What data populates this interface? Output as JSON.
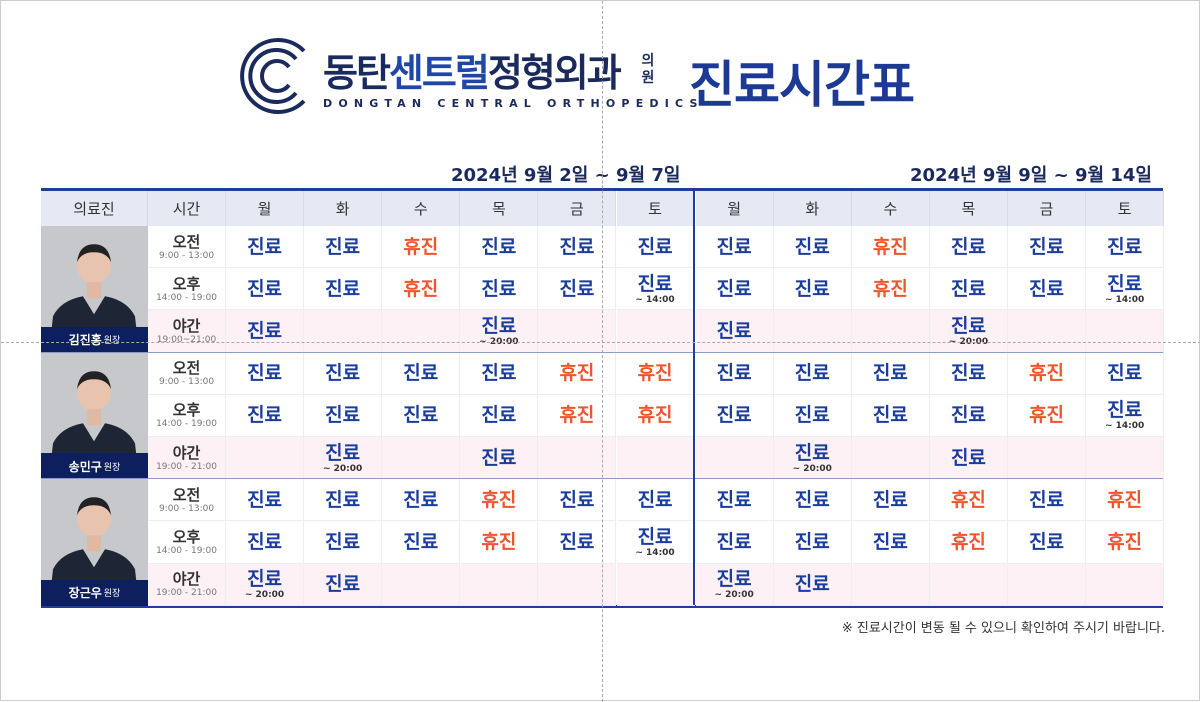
{
  "header": {
    "brand_ko_a": "동탄",
    "brand_ko_b": "센트럴",
    "brand_ko_c": "정형외과",
    "brand_suffix_1": "의",
    "brand_suffix_2": "원",
    "brand_en": "DONGTAN CENTRAL ORTHOPEDICS",
    "title": "진료시간표"
  },
  "weeks": [
    "2024년 9월 2일 ~ 9월 7일",
    "2024년 9월 9일 ~ 9월 14일"
  ],
  "columns": {
    "doctor": "의료진",
    "time": "시간",
    "days": [
      "월",
      "화",
      "수",
      "목",
      "금",
      "토"
    ]
  },
  "colors": {
    "open": "#1a3c9c",
    "closed": "#f0542d",
    "navy": "#0e1f5f"
  },
  "doctors": [
    {
      "name": "김진홍",
      "title": "원장",
      "slots": [
        {
          "label": "오전",
          "time": "9:00 - 13:00",
          "w1": [
            [
              "진료"
            ],
            [
              "진료"
            ],
            [
              "휴진"
            ],
            [
              "진료"
            ],
            [
              "진료"
            ],
            [
              "진료"
            ]
          ],
          "w2": [
            [
              "진료"
            ],
            [
              "진료"
            ],
            [
              "휴진"
            ],
            [
              "진료"
            ],
            [
              "진료"
            ],
            [
              "진료"
            ]
          ]
        },
        {
          "label": "오후",
          "time": "14:00 - 19:00",
          "w1": [
            [
              "진료"
            ],
            [
              "진료"
            ],
            [
              "휴진"
            ],
            [
              "진료"
            ],
            [
              "진료"
            ],
            [
              "진료",
              "~ 14:00"
            ]
          ],
          "w2": [
            [
              "진료"
            ],
            [
              "진료"
            ],
            [
              "휴진"
            ],
            [
              "진료"
            ],
            [
              "진료"
            ],
            [
              "진료",
              "~ 14:00"
            ]
          ]
        },
        {
          "label": "야간",
          "time": "19:00~21:00",
          "w1": [
            [
              "진료"
            ],
            [],
            [],
            [
              "진료",
              "~ 20:00"
            ],
            [],
            []
          ],
          "w2": [
            [
              "진료"
            ],
            [],
            [],
            [
              "진료",
              "~ 20:00"
            ],
            [],
            []
          ]
        }
      ]
    },
    {
      "name": "송민구",
      "title": "원장",
      "slots": [
        {
          "label": "오전",
          "time": "9:00 - 13:00",
          "w1": [
            [
              "진료"
            ],
            [
              "진료"
            ],
            [
              "진료"
            ],
            [
              "진료"
            ],
            [
              "휴진"
            ],
            [
              "휴진"
            ]
          ],
          "w2": [
            [
              "진료"
            ],
            [
              "진료"
            ],
            [
              "진료"
            ],
            [
              "진료"
            ],
            [
              "휴진"
            ],
            [
              "진료"
            ]
          ]
        },
        {
          "label": "오후",
          "time": "14:00 - 19:00",
          "w1": [
            [
              "진료"
            ],
            [
              "진료"
            ],
            [
              "진료"
            ],
            [
              "진료"
            ],
            [
              "휴진"
            ],
            [
              "휴진"
            ]
          ],
          "w2": [
            [
              "진료"
            ],
            [
              "진료"
            ],
            [
              "진료"
            ],
            [
              "진료"
            ],
            [
              "휴진"
            ],
            [
              "진료",
              "~ 14:00"
            ]
          ]
        },
        {
          "label": "야간",
          "time": "19:00 - 21:00",
          "w1": [
            [],
            [
              "진료",
              "~ 20:00"
            ],
            [],
            [
              "진료"
            ],
            [],
            []
          ],
          "w2": [
            [],
            [
              "진료",
              "~ 20:00"
            ],
            [],
            [
              "진료"
            ],
            [],
            []
          ]
        }
      ]
    },
    {
      "name": "장근우",
      "title": "원장",
      "slots": [
        {
          "label": "오전",
          "time": "9:00 - 13:00",
          "w1": [
            [
              "진료"
            ],
            [
              "진료"
            ],
            [
              "진료"
            ],
            [
              "휴진"
            ],
            [
              "진료"
            ],
            [
              "진료"
            ]
          ],
          "w2": [
            [
              "진료"
            ],
            [
              "진료"
            ],
            [
              "진료"
            ],
            [
              "휴진"
            ],
            [
              "진료"
            ],
            [
              "휴진"
            ]
          ]
        },
        {
          "label": "오후",
          "time": "14:00 - 19:00",
          "w1": [
            [
              "진료"
            ],
            [
              "진료"
            ],
            [
              "진료"
            ],
            [
              "휴진"
            ],
            [
              "진료"
            ],
            [
              "진료",
              "~ 14:00"
            ]
          ],
          "w2": [
            [
              "진료"
            ],
            [
              "진료"
            ],
            [
              "진료"
            ],
            [
              "휴진"
            ],
            [
              "진료"
            ],
            [
              "휴진"
            ]
          ]
        },
        {
          "label": "야간",
          "time": "19:00 - 21:00",
          "w1": [
            [
              "진료",
              "~ 20:00"
            ],
            [
              "진료"
            ],
            [],
            [],
            [],
            []
          ],
          "w2": [
            [
              "진료",
              "~ 20:00"
            ],
            [
              "진료"
            ],
            [],
            [],
            [],
            []
          ]
        }
      ]
    }
  ],
  "footnote": "※ 진료시간이 변동 될 수 있으니 확인하여 주시기 바랍니다."
}
